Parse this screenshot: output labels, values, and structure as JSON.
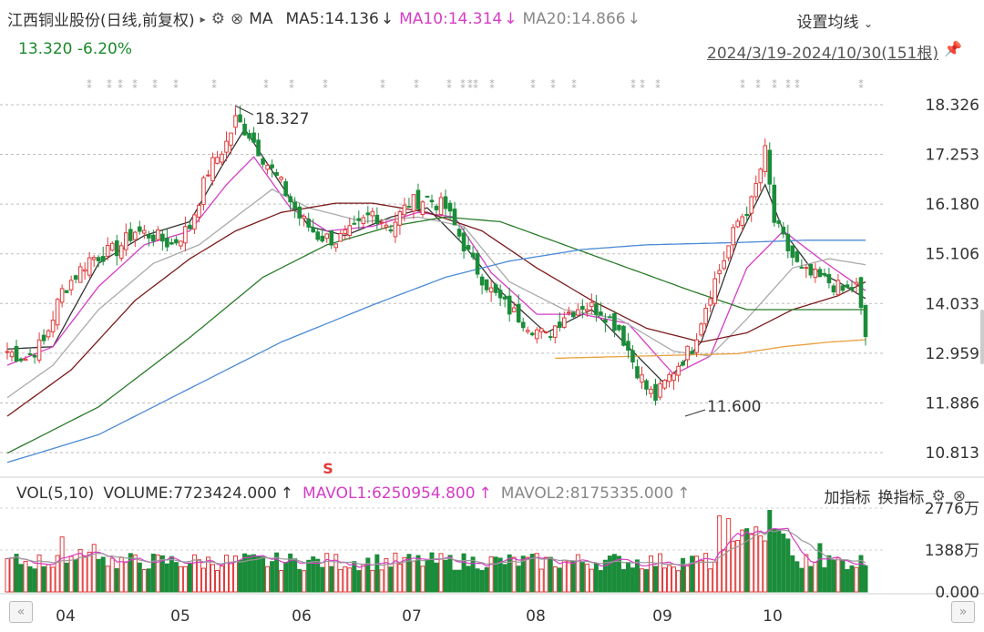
{
  "header": {
    "name": "江西铜业股份(日线,前复权)",
    "ma_label": "MA",
    "ma5": "MA5:14.136",
    "ma10": "MA10:14.314",
    "ma20": "MA20:14.866",
    "down_arrow": "↓",
    "settings": "设置均线"
  },
  "quote": {
    "price": "13.320",
    "change": "-6.20%"
  },
  "date_range": "2024/3/19-2024/10/30(151根)",
  "volume_header": {
    "vol": "VOL(5,10)",
    "volume": "VOLUME:7723424.000",
    "mavol1": "MAVOL1:6250954.800",
    "mavol2": "MAVOL2:8175335.000",
    "up_arrow": "↑",
    "add_indicator": "加指标",
    "switch_indicator": "换指标"
  },
  "colors": {
    "up": "#e23a3a",
    "down": "#1b8c3a",
    "ma5": "#333333",
    "ma10": "#d63cc6",
    "ma20": "#aaaaaa",
    "ma30": "#7a1a1a",
    "ma60": "#2a7a2a",
    "ma120": "#4a8ad6",
    "ma250": "#e8a040"
  },
  "chart_data": {
    "type": "candlestick",
    "y_ticks": [
      "18.326",
      "17.253",
      "16.180",
      "15.106",
      "14.033",
      "12.959",
      "11.886",
      "10.813"
    ],
    "ylim": [
      10.5,
      18.8
    ],
    "x_month_labels": [
      "04",
      "05",
      "06",
      "07",
      "08",
      "09",
      "10"
    ],
    "annotations": {
      "high": "18.327",
      "low": "11.600",
      "signal": "S"
    },
    "volume_ticks": [
      "2776万",
      "1388万",
      "0.000"
    ],
    "volume_max": 2776,
    "close_anchors": [
      [
        0,
        13.0
      ],
      [
        4,
        12.85
      ],
      [
        8,
        13.2
      ],
      [
        12,
        14.3
      ],
      [
        18,
        15.0
      ],
      [
        24,
        15.2
      ],
      [
        28,
        15.6
      ],
      [
        32,
        15.5
      ],
      [
        36,
        15.3
      ],
      [
        40,
        15.7
      ],
      [
        44,
        16.9
      ],
      [
        48,
        17.5
      ],
      [
        50,
        18.0
      ],
      [
        53,
        17.7
      ],
      [
        56,
        17.2
      ],
      [
        60,
        16.6
      ],
      [
        64,
        15.9
      ],
      [
        68,
        15.5
      ],
      [
        72,
        15.4
      ],
      [
        76,
        15.6
      ],
      [
        80,
        16.0
      ],
      [
        84,
        15.7
      ],
      [
        88,
        16.2
      ],
      [
        92,
        16.3
      ],
      [
        96,
        16.1
      ],
      [
        98,
        15.7
      ],
      [
        102,
        14.9
      ],
      [
        106,
        14.3
      ],
      [
        110,
        13.9
      ],
      [
        114,
        13.6
      ],
      [
        118,
        13.3
      ],
      [
        122,
        13.8
      ],
      [
        126,
        14.0
      ],
      [
        130,
        13.9
      ],
      [
        134,
        13.5
      ],
      [
        137,
        12.8
      ],
      [
        140,
        12.2
      ],
      [
        142,
        12.0
      ],
      [
        146,
        12.6
      ],
      [
        150,
        13.1
      ],
      [
        154,
        14.3
      ],
      [
        157,
        15.0
      ],
      [
        160,
        15.8
      ],
      [
        163,
        16.2
      ],
      [
        166,
        17.3
      ],
      [
        168,
        15.8
      ],
      [
        171,
        15.2
      ],
      [
        174,
        14.7
      ],
      [
        177,
        14.6
      ],
      [
        180,
        14.5
      ],
      [
        183,
        14.3
      ],
      [
        186,
        14.4
      ],
      [
        188,
        13.3
      ]
    ],
    "ma_series": {
      "ma5": [
        [
          0,
          13.05
        ],
        [
          10,
          13.1
        ],
        [
          20,
          14.9
        ],
        [
          30,
          15.5
        ],
        [
          40,
          15.8
        ],
        [
          47,
          17.0
        ],
        [
          52,
          17.8
        ],
        [
          58,
          16.9
        ],
        [
          66,
          15.7
        ],
        [
          74,
          15.5
        ],
        [
          84,
          15.9
        ],
        [
          92,
          16.1
        ],
        [
          100,
          15.3
        ],
        [
          108,
          14.3
        ],
        [
          118,
          13.4
        ],
        [
          128,
          13.9
        ],
        [
          136,
          13.1
        ],
        [
          144,
          12.3
        ],
        [
          152,
          13.2
        ],
        [
          160,
          15.4
        ],
        [
          166,
          16.6
        ],
        [
          170,
          15.6
        ],
        [
          176,
          14.8
        ],
        [
          182,
          14.5
        ],
        [
          188,
          14.14
        ]
      ],
      "ma10": [
        [
          0,
          12.7
        ],
        [
          10,
          13.1
        ],
        [
          20,
          14.4
        ],
        [
          30,
          15.3
        ],
        [
          40,
          15.6
        ],
        [
          48,
          16.6
        ],
        [
          54,
          17.2
        ],
        [
          62,
          16.1
        ],
        [
          70,
          15.6
        ],
        [
          80,
          15.7
        ],
        [
          90,
          16.0
        ],
        [
          98,
          15.9
        ],
        [
          106,
          14.7
        ],
        [
          116,
          13.8
        ],
        [
          126,
          13.8
        ],
        [
          136,
          13.6
        ],
        [
          146,
          12.5
        ],
        [
          154,
          12.9
        ],
        [
          162,
          14.8
        ],
        [
          170,
          15.6
        ],
        [
          178,
          15.0
        ],
        [
          188,
          14.31
        ]
      ],
      "ma20": [
        [
          0,
          12.0
        ],
        [
          10,
          12.7
        ],
        [
          20,
          13.9
        ],
        [
          32,
          14.9
        ],
        [
          42,
          15.3
        ],
        [
          50,
          15.9
        ],
        [
          58,
          16.5
        ],
        [
          66,
          16.1
        ],
        [
          78,
          15.8
        ],
        [
          90,
          15.9
        ],
        [
          100,
          15.7
        ],
        [
          110,
          14.5
        ],
        [
          122,
          13.9
        ],
        [
          134,
          13.7
        ],
        [
          146,
          13.0
        ],
        [
          154,
          12.9
        ],
        [
          162,
          13.7
        ],
        [
          172,
          14.8
        ],
        [
          180,
          15.0
        ],
        [
          188,
          14.87
        ]
      ],
      "ma30": [
        [
          0,
          11.6
        ],
        [
          14,
          12.6
        ],
        [
          28,
          14.1
        ],
        [
          40,
          15.0
        ],
        [
          50,
          15.6
        ],
        [
          60,
          16.0
        ],
        [
          72,
          16.2
        ],
        [
          80,
          16.2
        ],
        [
          92,
          16.0
        ],
        [
          104,
          15.6
        ],
        [
          116,
          14.8
        ],
        [
          128,
          14.1
        ],
        [
          140,
          13.5
        ],
        [
          152,
          13.2
        ],
        [
          162,
          13.4
        ],
        [
          172,
          13.9
        ],
        [
          182,
          14.2
        ],
        [
          188,
          14.5
        ]
      ],
      "ma60": [
        [
          0,
          10.8
        ],
        [
          20,
          11.8
        ],
        [
          40,
          13.3
        ],
        [
          56,
          14.6
        ],
        [
          70,
          15.3
        ],
        [
          84,
          15.7
        ],
        [
          96,
          15.9
        ],
        [
          108,
          15.8
        ],
        [
          122,
          15.3
        ],
        [
          136,
          14.8
        ],
        [
          150,
          14.3
        ],
        [
          162,
          13.9
        ],
        [
          176,
          13.9
        ],
        [
          188,
          13.9
        ]
      ],
      "ma120": [
        [
          0,
          10.6
        ],
        [
          20,
          11.2
        ],
        [
          40,
          12.2
        ],
        [
          60,
          13.2
        ],
        [
          80,
          14.0
        ],
        [
          96,
          14.6
        ],
        [
          110,
          14.95
        ],
        [
          126,
          15.2
        ],
        [
          140,
          15.3
        ],
        [
          160,
          15.35
        ],
        [
          175,
          15.4
        ],
        [
          188,
          15.4
        ]
      ],
      "ma250": [
        [
          120,
          12.85
        ],
        [
          140,
          12.9
        ],
        [
          160,
          12.95
        ],
        [
          170,
          13.1
        ],
        [
          180,
          13.2
        ],
        [
          188,
          13.25
        ]
      ]
    }
  }
}
